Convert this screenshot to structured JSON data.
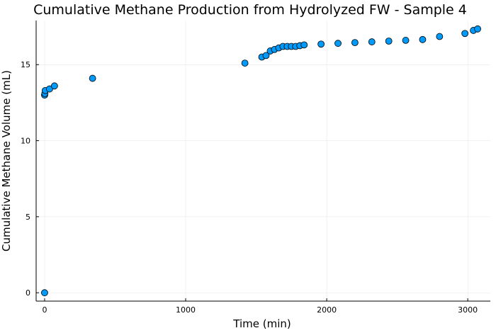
{
  "chart_data": {
    "type": "scatter",
    "title": "Cumulative Methane Production from Hydrolyzed FW - Sample 4",
    "xlabel": "Time (min)",
    "ylabel": "Cumulative Methane Volume (mL)",
    "xlim": [
      -60,
      3160
    ],
    "ylim": [
      -0.55,
      17.9
    ],
    "xticks": [
      0,
      1000,
      2000,
      3000
    ],
    "yticks": [
      0,
      5,
      10,
      15
    ],
    "grid": true,
    "legend": "none",
    "marker_color": "#009AFA",
    "series": [
      {
        "x": [
          0,
          0,
          2,
          5,
          35,
          70,
          340,
          1420,
          1540,
          1570,
          1600,
          1630,
          1660,
          1690,
          1720,
          1750,
          1780,
          1810,
          1840,
          1960,
          2080,
          2200,
          2320,
          2440,
          2560,
          2680,
          2800,
          2980,
          3040,
          3070
        ],
        "y": [
          0,
          13.0,
          13.1,
          13.3,
          13.4,
          13.6,
          14.1,
          15.1,
          15.5,
          15.6,
          15.9,
          16.0,
          16.1,
          16.2,
          16.2,
          16.2,
          16.2,
          16.25,
          16.3,
          16.35,
          16.4,
          16.45,
          16.5,
          16.55,
          16.6,
          16.65,
          16.85,
          17.05,
          17.25,
          17.35
        ]
      }
    ]
  }
}
